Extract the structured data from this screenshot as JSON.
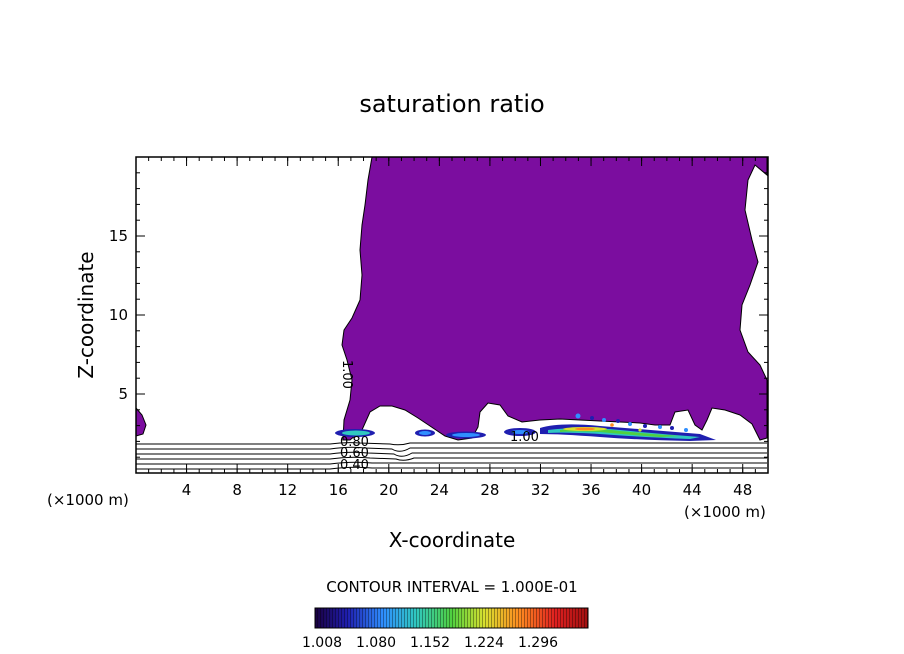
{
  "chart_data": {
    "type": "contour",
    "title": "saturation ratio",
    "xlabel": "X-coordinate",
    "ylabel": "Z-coordinate",
    "x_unit_left": "(×1000 m)",
    "x_unit_right": "(×1000 m)",
    "xlim": [
      0,
      50
    ],
    "ylim": [
      0,
      20
    ],
    "xticks": [
      4,
      8,
      12,
      16,
      20,
      24,
      28,
      32,
      36,
      40,
      44,
      48
    ],
    "yticks": [
      5,
      10,
      15
    ],
    "contour_interval_text": "CONTOUR INTERVAL = 1.000E-01",
    "contour_labels": [
      "1.00",
      "0.80",
      "0.60",
      "0.40"
    ],
    "colorbar": {
      "ticks": [
        "1.008",
        "1.080",
        "1.152",
        "1.224",
        "1.296"
      ],
      "colors": [
        "#1a0040",
        "#1f1fb0",
        "#2f8fff",
        "#30c8c0",
        "#50d040",
        "#d8e030",
        "#ff8a20",
        "#e02020",
        "#a01010"
      ]
    },
    "fill_color": "#7b0d9f",
    "supersaturated_region": {
      "x_range": [
        16,
        50
      ],
      "z_range": [
        2,
        20
      ],
      "min_ratio": 1.0
    }
  }
}
